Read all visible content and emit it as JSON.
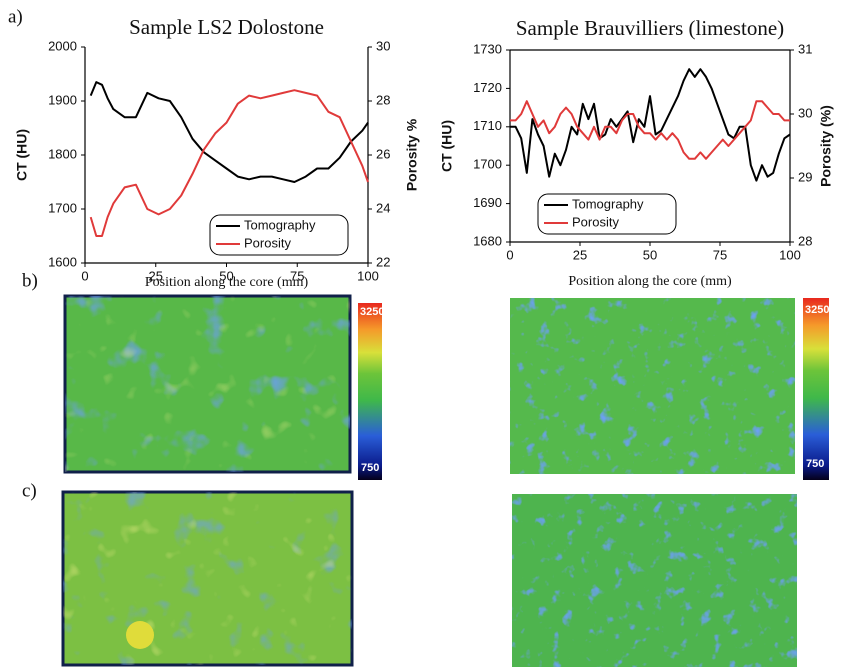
{
  "panels": {
    "labels": [
      "a)",
      "b)",
      "c)"
    ]
  },
  "colorbars": [
    {
      "max": 3250,
      "min": 750
    },
    {
      "max": 3250,
      "min": 750
    }
  ],
  "chart_data": [
    {
      "type": "line",
      "title": "Sample LS2 Dolostone",
      "xlabel": "Position along the core (mm)",
      "ylabel": "CT (HU)",
      "y2label": "Porosity %",
      "xlim": [
        0,
        100
      ],
      "xticks": [
        0,
        25,
        50,
        75,
        100
      ],
      "ylim": [
        1600,
        2000
      ],
      "yticks": [
        1600,
        1700,
        1800,
        1900,
        2000
      ],
      "y2lim": [
        22,
        30
      ],
      "y2ticks": [
        22,
        24,
        26,
        28,
        30
      ],
      "frame": false,
      "legend": "lower right",
      "x": [
        2,
        4,
        6,
        8,
        10,
        14,
        18,
        22,
        26,
        30,
        34,
        38,
        42,
        46,
        50,
        54,
        58,
        62,
        66,
        70,
        74,
        78,
        82,
        86,
        90,
        94,
        98,
        100
      ],
      "series": [
        {
          "name": "Tomography",
          "color": "#000000",
          "values": [
            1910,
            1935,
            1930,
            1905,
            1885,
            1870,
            1870,
            1915,
            1905,
            1900,
            1870,
            1830,
            1805,
            1790,
            1775,
            1760,
            1755,
            1760,
            1760,
            1755,
            1750,
            1760,
            1775,
            1775,
            1795,
            1825,
            1845,
            1860
          ]
        },
        {
          "name": "Porosity",
          "color": "#e03a3a",
          "axis": "y2",
          "values": [
            23.7,
            23.0,
            23.0,
            23.7,
            24.2,
            24.8,
            24.9,
            24.0,
            23.8,
            24.0,
            24.5,
            25.3,
            26.2,
            26.8,
            27.2,
            27.9,
            28.2,
            28.1,
            28.2,
            28.3,
            28.4,
            28.3,
            28.2,
            27.6,
            27.4,
            26.5,
            25.6,
            25.0
          ]
        }
      ]
    },
    {
      "type": "line",
      "title": "Sample Brauvilliers (limestone)",
      "xlabel": "Position along the core (mm)",
      "ylabel": "CT (HU)",
      "y2label": "Porosity  (%)",
      "xlim": [
        0,
        100
      ],
      "xticks": [
        0,
        25,
        50,
        75,
        100
      ],
      "ylim": [
        1680,
        1730
      ],
      "yticks": [
        1680,
        1690,
        1700,
        1710,
        1720,
        1730
      ],
      "y2lim": [
        28,
        31
      ],
      "y2ticks": [
        28,
        29,
        30,
        31
      ],
      "frame": true,
      "legend": "lower left",
      "x": [
        0,
        2,
        4,
        6,
        8,
        10,
        12,
        14,
        16,
        18,
        20,
        22,
        24,
        26,
        28,
        30,
        32,
        34,
        36,
        38,
        40,
        42,
        44,
        46,
        48,
        50,
        52,
        54,
        56,
        58,
        60,
        62,
        64,
        66,
        68,
        70,
        72,
        74,
        76,
        78,
        80,
        82,
        84,
        86,
        88,
        90,
        92,
        94,
        96,
        98,
        100
      ],
      "series": [
        {
          "name": "Tomography",
          "color": "#000000",
          "values": [
            1710,
            1710,
            1707,
            1698,
            1712,
            1708,
            1705,
            1697,
            1703,
            1700,
            1704,
            1710,
            1708,
            1716,
            1712,
            1716,
            1707,
            1708,
            1712,
            1710,
            1712,
            1714,
            1706,
            1712,
            1710,
            1718,
            1708,
            1709,
            1712,
            1715,
            1718,
            1722,
            1725,
            1723,
            1725,
            1723,
            1720,
            1716,
            1712,
            1708,
            1707,
            1710,
            1710,
            1700,
            1696,
            1700,
            1697,
            1698,
            1703,
            1707,
            1708
          ]
        },
        {
          "name": "Porosity",
          "color": "#e03a3a",
          "axis": "y2",
          "values": [
            29.9,
            29.9,
            30.0,
            30.2,
            30.0,
            29.8,
            29.9,
            29.7,
            29.8,
            30.0,
            30.1,
            30.0,
            29.8,
            29.7,
            29.6,
            29.8,
            29.6,
            29.8,
            29.8,
            29.7,
            29.9,
            30.0,
            30.0,
            29.8,
            29.7,
            29.7,
            29.6,
            29.7,
            29.6,
            29.7,
            29.6,
            29.4,
            29.3,
            29.3,
            29.4,
            29.3,
            29.4,
            29.5,
            29.6,
            29.5,
            29.6,
            29.7,
            29.8,
            29.9,
            30.2,
            30.2,
            30.1,
            30.0,
            30.0,
            29.9,
            29.9
          ]
        }
      ]
    }
  ]
}
